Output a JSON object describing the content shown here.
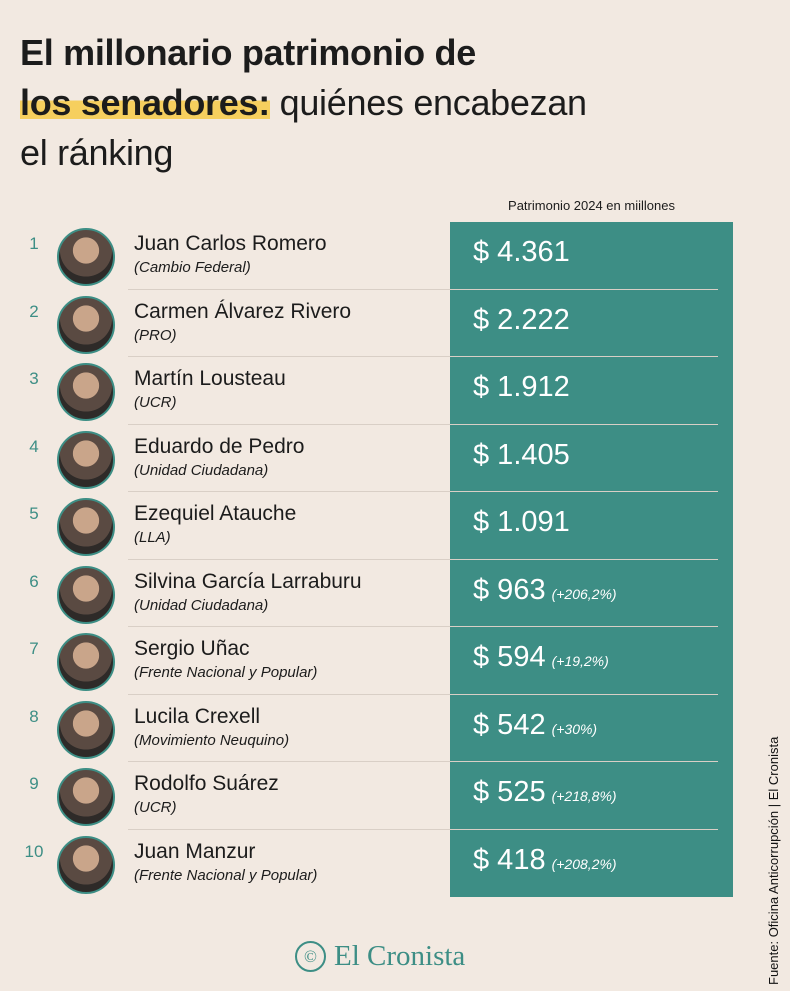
{
  "title": {
    "line1": "El millonario patrimonio de",
    "highlight": "los senadores:",
    "line2_rest": " quiénes encabezan",
    "line3": "el ránking"
  },
  "chart_data": {
    "type": "table",
    "title": "El millonario patrimonio de los senadores: quiénes encabezan el ránking",
    "column_header": "Patrimonio 2024 en miillones",
    "rows": [
      {
        "rank": "1",
        "name": "Juan Carlos Romero",
        "party": "(Cambio Federal)",
        "value": "$ 4.361",
        "change": ""
      },
      {
        "rank": "2",
        "name": "Carmen Álvarez Rivero",
        "party": "(PRO)",
        "value": "$ 2.222",
        "change": ""
      },
      {
        "rank": "3",
        "name": "Martín Lousteau",
        "party": "(UCR)",
        "value": "$ 1.912",
        "change": ""
      },
      {
        "rank": "4",
        "name": "Eduardo de Pedro",
        "party": "(Unidad Ciudadana)",
        "value": "$ 1.405",
        "change": ""
      },
      {
        "rank": "5",
        "name": "Ezequiel Atauche",
        "party": "(LLA)",
        "value": "$ 1.091",
        "change": ""
      },
      {
        "rank": "6",
        "name": "Silvina García Larraburu",
        "party": "(Unidad Ciudadana)",
        "value": "$ 963",
        "change": "(+206,2%)"
      },
      {
        "rank": "7",
        "name": "Sergio Uñac",
        "party": "(Frente Nacional y Popular)",
        "value": "$ 594",
        "change": "(+19,2%)"
      },
      {
        "rank": "8",
        "name": "Lucila Crexell",
        "party": "(Movimiento Neuquino)",
        "value": "$ 542",
        "change": "(+30%)"
      },
      {
        "rank": "9",
        "name": "Rodolfo Suárez",
        "party": "(UCR)",
        "value": "$ 525",
        "change": "(+218,8%)"
      },
      {
        "rank": "10",
        "name": "Juan Manzur",
        "party": "(Frente Nacional y Popular)",
        "value": "$ 418",
        "change": "(+208,2%)"
      }
    ],
    "values_millions": [
      4361,
      2222,
      1912,
      1405,
      1091,
      963,
      594,
      542,
      525,
      418
    ]
  },
  "footer": {
    "logo": "El Cronista",
    "logo_mark": "©",
    "source": "Fuente: Oficina Anticorrupción | El Cronista"
  },
  "colors": {
    "teal": "#3d8e85",
    "background": "#f2e9e1",
    "highlight": "#f6cf5e"
  }
}
